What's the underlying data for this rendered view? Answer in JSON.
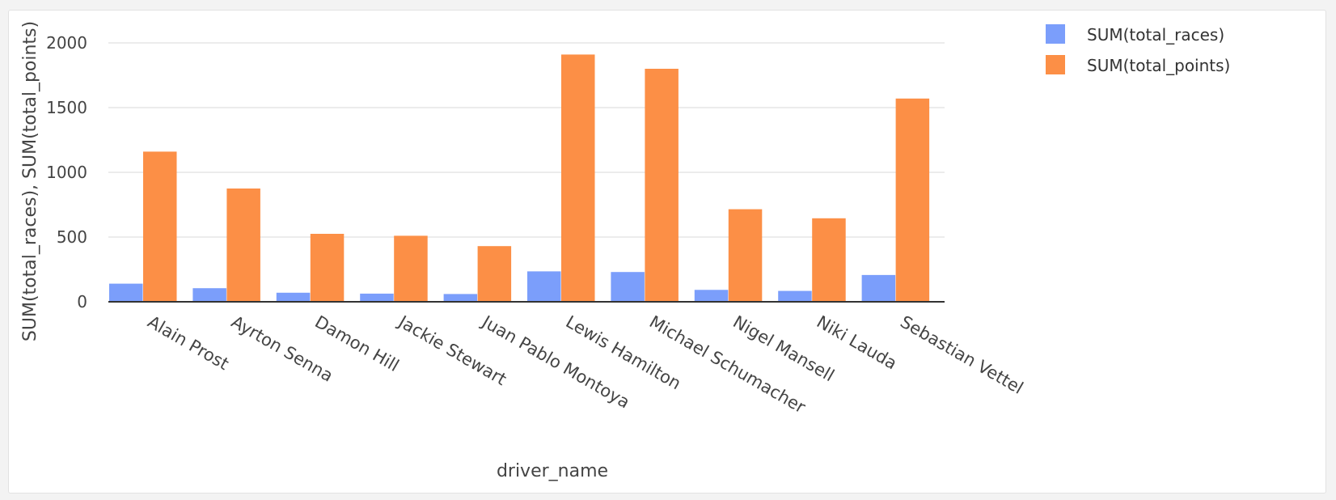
{
  "chart_data": {
    "type": "bar",
    "xlabel": "driver_name",
    "ylabel": "SUM(total_races), SUM(total_points)",
    "ylim": [
      0,
      2000
    ],
    "yticks": [
      0,
      500,
      1000,
      1500,
      2000
    ],
    "grid": true,
    "legend_position": "top-right",
    "categories": [
      "Alain Prost",
      "Ayrton Senna",
      "Damon Hill",
      "Jackie Stewart",
      "Juan Pablo Montoya",
      "Lewis Hamilton",
      "Michael Schumacher",
      "Nigel Mansell",
      "Niki Lauda",
      "Sebastian Vettel"
    ],
    "series": [
      {
        "name": "SUM(total_races)",
        "color": "#7b9efb",
        "values": [
          140,
          105,
          70,
          63,
          60,
          235,
          230,
          92,
          84,
          207
        ]
      },
      {
        "name": "SUM(total_points)",
        "color": "#fc8f46",
        "values": [
          1160,
          875,
          525,
          510,
          430,
          1910,
          1800,
          715,
          645,
          1570
        ]
      }
    ]
  }
}
